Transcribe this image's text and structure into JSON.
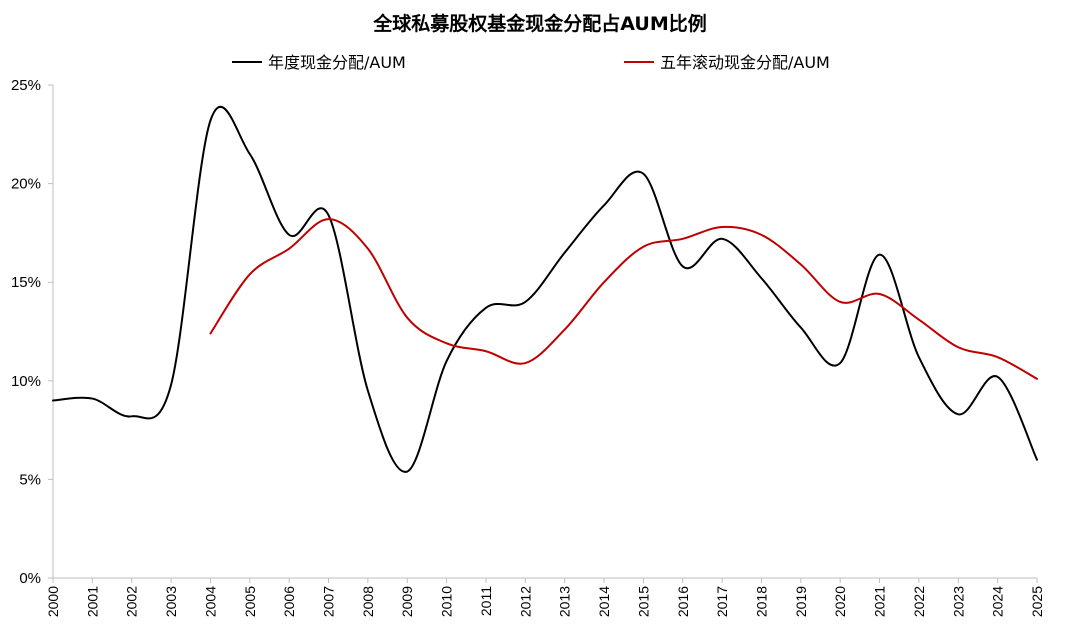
{
  "chart_data": {
    "type": "line",
    "title": "全球私募股权基金现金分配占AUM比例",
    "xlabel": "",
    "ylabel": "",
    "x": [
      "2000",
      "2001",
      "2002",
      "2003",
      "2004",
      "2005",
      "2006",
      "2007",
      "2008",
      "2009",
      "2010",
      "2011",
      "2012",
      "2013",
      "2014",
      "2015",
      "2016",
      "2017",
      "2018",
      "2019",
      "2020",
      "2021",
      "2022",
      "2023",
      "2024",
      "2025"
    ],
    "ylim": [
      0,
      25
    ],
    "yticks": [
      0,
      5,
      10,
      15,
      20,
      25
    ],
    "ytick_labels": [
      "0%",
      "5%",
      "10%",
      "15%",
      "20%",
      "25%"
    ],
    "grid": false,
    "legend_position": "top",
    "series": [
      {
        "name": "年度现金分配/AUM",
        "color": "#000000",
        "values": [
          9.0,
          9.1,
          8.2,
          9.8,
          23.2,
          21.5,
          17.4,
          18.4,
          9.5,
          5.4,
          11.0,
          13.7,
          14.0,
          16.5,
          18.9,
          20.5,
          15.8,
          17.2,
          15.2,
          12.7,
          10.9,
          16.4,
          11.2,
          8.3,
          10.2,
          6.0
        ]
      },
      {
        "name": "五年滚动现金分配/AUM",
        "color": "#c00000",
        "values": [
          null,
          null,
          null,
          null,
          12.4,
          15.4,
          16.7,
          18.2,
          16.7,
          13.2,
          11.9,
          11.5,
          10.9,
          12.6,
          15.0,
          16.8,
          17.2,
          17.8,
          17.4,
          15.9,
          14.0,
          14.4,
          13.1,
          11.7,
          11.2,
          10.1
        ]
      }
    ]
  }
}
